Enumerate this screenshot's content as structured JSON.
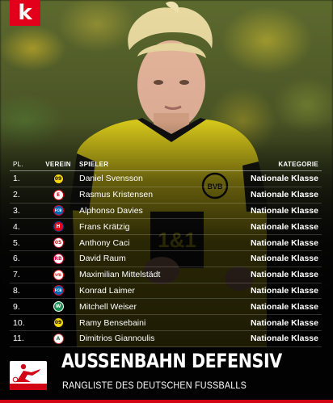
{
  "brand": {
    "logo_letter": "k",
    "color": "#e2001a"
  },
  "table": {
    "headers": {
      "rank": "PL.",
      "club": "VEREIN",
      "player": "SPIELER",
      "category": "KATEGORIE"
    },
    "rows": [
      {
        "rank": "1.",
        "club_icon": "dortmund-crest-icon",
        "player": "Daniel Svensson",
        "category": "Nationale Klasse"
      },
      {
        "rank": "2.",
        "club_icon": "frankfurt-crest-icon",
        "player": "Rasmus Kristensen",
        "category": "Nationale Klasse"
      },
      {
        "rank": "3.",
        "club_icon": "bayern-crest-icon",
        "player": "Alphonso Davies",
        "category": "Nationale Klasse"
      },
      {
        "rank": "4.",
        "club_icon": "heidenheim-crest-icon",
        "player": "Frans Krätzig",
        "category": "Nationale Klasse"
      },
      {
        "rank": "5.",
        "club_icon": "mainz-crest-icon",
        "player": "Anthony Caci",
        "category": "Nationale Klasse"
      },
      {
        "rank": "6.",
        "club_icon": "leipzig-crest-icon",
        "player": "David Raum",
        "category": "Nationale Klasse"
      },
      {
        "rank": "7.",
        "club_icon": "stuttgart-crest-icon",
        "player": "Maximilian Mittelstädt",
        "category": "Nationale Klasse"
      },
      {
        "rank": "8.",
        "club_icon": "bayern-crest-icon",
        "player": "Konrad Laimer",
        "category": "Nationale Klasse"
      },
      {
        "rank": "9.",
        "club_icon": "bremen-crest-icon",
        "player": "Mitchell Weiser",
        "category": "Nationale Klasse"
      },
      {
        "rank": "10.",
        "club_icon": "dortmund-crest-icon",
        "player": "Ramy Bensebaini",
        "category": "Nationale Klasse"
      },
      {
        "rank": "11.",
        "club_icon": "augsburg-crest-icon",
        "player": "Dimitrios Giannoulis",
        "category": "Nationale Klasse"
      }
    ]
  },
  "footer": {
    "title": "AUSSENBAHN DEFENSIV",
    "subtitle": "RANGLISTE DES DEUTSCHEN FUSSBALLS",
    "accent_color": "#d20515"
  },
  "photo": {
    "shirt_sponsor": "1&1",
    "shirt_badge": "BVB 09"
  }
}
